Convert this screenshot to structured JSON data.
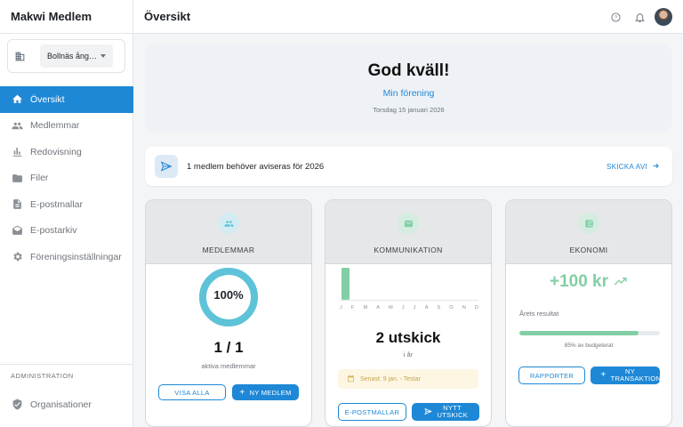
{
  "app": {
    "title": "Makwi Medlem"
  },
  "org": {
    "selected": "Bollnäs ång…"
  },
  "sidebar": {
    "items": [
      {
        "label": "Översikt",
        "icon": "home-icon"
      },
      {
        "label": "Medlemmar",
        "icon": "people-icon"
      },
      {
        "label": "Redovisning",
        "icon": "bar-chart-icon"
      },
      {
        "label": "Filer",
        "icon": "folder-icon"
      },
      {
        "label": "E-postmallar",
        "icon": "document-icon"
      },
      {
        "label": "E-postarkiv",
        "icon": "mail-archive-icon"
      },
      {
        "label": "Föreningsinställningar",
        "icon": "gear-icon"
      }
    ],
    "admin_label": "ADMINISTRATION",
    "admin_items": [
      {
        "label": "Organisationer",
        "icon": "shield-icon"
      }
    ]
  },
  "header": {
    "title": "Översikt"
  },
  "greeting": {
    "title": "God kväll!",
    "org_link": "Min förening",
    "date": "Torsdag 15 januari 2026"
  },
  "notice": {
    "text": "1 medlem behöver aviseras för 2026",
    "action": "SKICKA AVI"
  },
  "cards": {
    "members": {
      "title": "MEDLEMMAR",
      "percent_label": "100%",
      "percent": 100,
      "count": "1 / 1",
      "caption": "aktiva medlemmar",
      "btn_show_all": "VISA ALLA",
      "btn_new": "NY MEDLEM"
    },
    "communication": {
      "title": "KOMMUNIKATION",
      "months": [
        "J",
        "F",
        "M",
        "A",
        "M",
        "J",
        "J",
        "A",
        "S",
        "O",
        "N",
        "D"
      ],
      "monthly_sends": [
        2,
        0,
        0,
        0,
        0,
        0,
        0,
        0,
        0,
        0,
        0,
        0
      ],
      "count": "2 utskick",
      "caption": "i år",
      "latest": "Senast: 9 jan. - Testar",
      "btn_templates": "E-POSTMALLAR",
      "btn_new": "NYTT UTSKICK"
    },
    "economy": {
      "title": "EKONOMI",
      "amount": "+100 kr",
      "result_label": "Årets resultat",
      "budget_fraction": 0.85,
      "budget_text": "85% av budgeterat",
      "btn_reports": "RAPPORTER",
      "btn_new": "NY TRANSAKTION"
    }
  },
  "colors": {
    "accent": "#1e88d6",
    "members": "#5ec3d8",
    "communication": "#82cfa5",
    "economy": "#82cfa5"
  }
}
